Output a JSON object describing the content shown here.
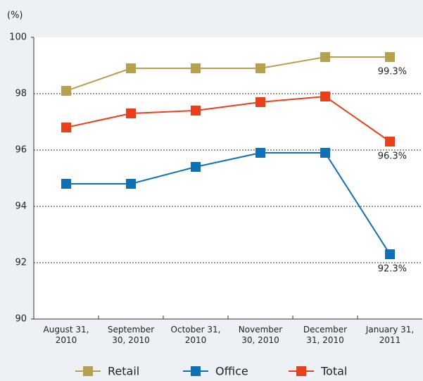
{
  "chart_data": {
    "type": "line",
    "y_label": "(%)",
    "categories": [
      "August 31, 2010",
      "September 30, 2010",
      "October 31, 2010",
      "November 30, 2010",
      "December 31, 2010",
      "January 31, 2011"
    ],
    "series": [
      {
        "name": "Retail",
        "color": "#b5a04f",
        "values": [
          98.1,
          98.9,
          98.9,
          98.9,
          99.3,
          99.3
        ],
        "value_labels": [
          null,
          null,
          null,
          null,
          null,
          "99.3%"
        ]
      },
      {
        "name": "Office",
        "color": "#1070b4",
        "values": [
          94.8,
          94.8,
          95.4,
          95.9,
          95.9,
          92.3
        ],
        "value_labels": [
          null,
          null,
          null,
          null,
          null,
          "92.3%"
        ]
      },
      {
        "name": "Total",
        "color": "#e8401c",
        "values": [
          96.8,
          97.3,
          97.4,
          97.7,
          97.9,
          96.3
        ],
        "value_labels": [
          null,
          null,
          null,
          null,
          null,
          "96.3%"
        ]
      }
    ],
    "ylim": [
      90,
      100
    ],
    "yticks": [
      90,
      92,
      94,
      96,
      98,
      100
    ],
    "grid": true
  }
}
